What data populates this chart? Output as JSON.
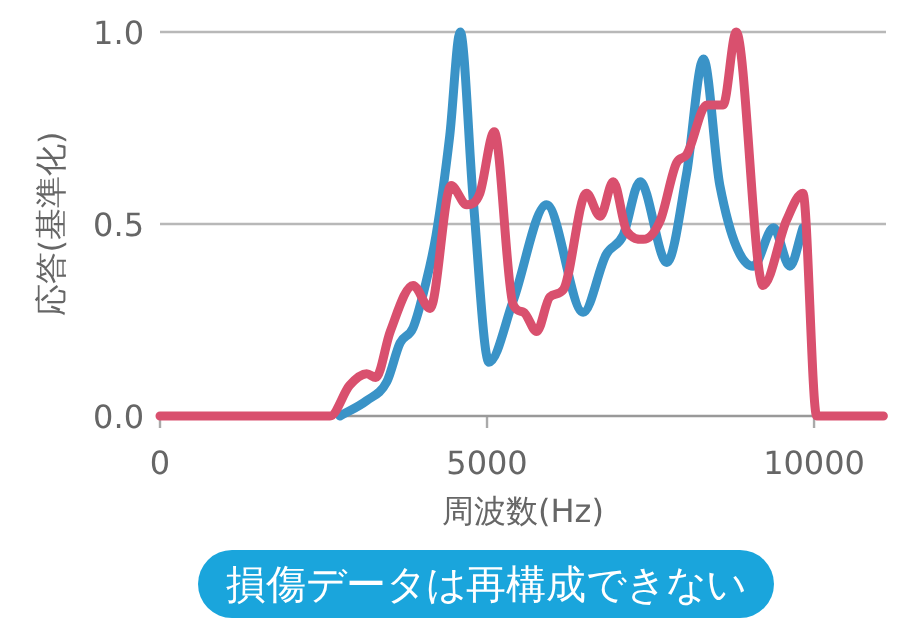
{
  "chart_data": {
    "type": "line",
    "xlabel": "周波数(Hz)",
    "ylabel": "応答(基準化)",
    "xlim": [
      0,
      11100
    ],
    "ylim": [
      0,
      1.0
    ],
    "xticks": [
      0,
      5000,
      10000
    ],
    "yticks": [
      {
        "value": 0,
        "label": "0.0"
      },
      {
        "value": 0.5,
        "label": "0.5"
      },
      {
        "value": 1.0,
        "label": "1.0"
      }
    ],
    "grid": "y",
    "marker": "none",
    "line_style": "solid",
    "series": [
      {
        "color": "#3a93c7",
        "x": [
          2750,
          3160,
          3470,
          3670,
          3870,
          4070,
          4220,
          4430,
          4590,
          4790,
          5030,
          5400,
          5910,
          6470,
          6820,
          7080,
          7340,
          7750,
          8050,
          8310,
          8560,
          9070,
          9380,
          9630,
          9830
        ],
        "values": [
          0,
          0.04,
          0.09,
          0.19,
          0.23,
          0.35,
          0.47,
          0.73,
          1.0,
          0.56,
          0.14,
          0.3,
          0.55,
          0.27,
          0.42,
          0.47,
          0.61,
          0.4,
          0.63,
          0.93,
          0.6,
          0.39,
          0.49,
          0.39,
          0.49
        ]
      },
      {
        "color": "#d9506e",
        "x": [
          0,
          2600,
          2900,
          3160,
          3300,
          3520,
          3870,
          4130,
          4450,
          4690,
          4890,
          5110,
          5400,
          5560,
          5760,
          5960,
          6170,
          6520,
          6730,
          6930,
          7140,
          7390,
          7650,
          7900,
          8050,
          8360,
          8610,
          8810,
          9220,
          9580,
          9830,
          10040,
          11060
        ],
        "values": [
          0,
          0,
          0.08,
          0.11,
          0.1,
          0.22,
          0.34,
          0.28,
          0.6,
          0.55,
          0.58,
          0.74,
          0.29,
          0.27,
          0.22,
          0.31,
          0.33,
          0.58,
          0.52,
          0.61,
          0.48,
          0.46,
          0.51,
          0.66,
          0.68,
          0.81,
          0.81,
          1.0,
          0.34,
          0.51,
          0.58,
          0,
          0
        ]
      }
    ],
    "annotations": [
      "損傷データは再構成できない"
    ]
  }
}
